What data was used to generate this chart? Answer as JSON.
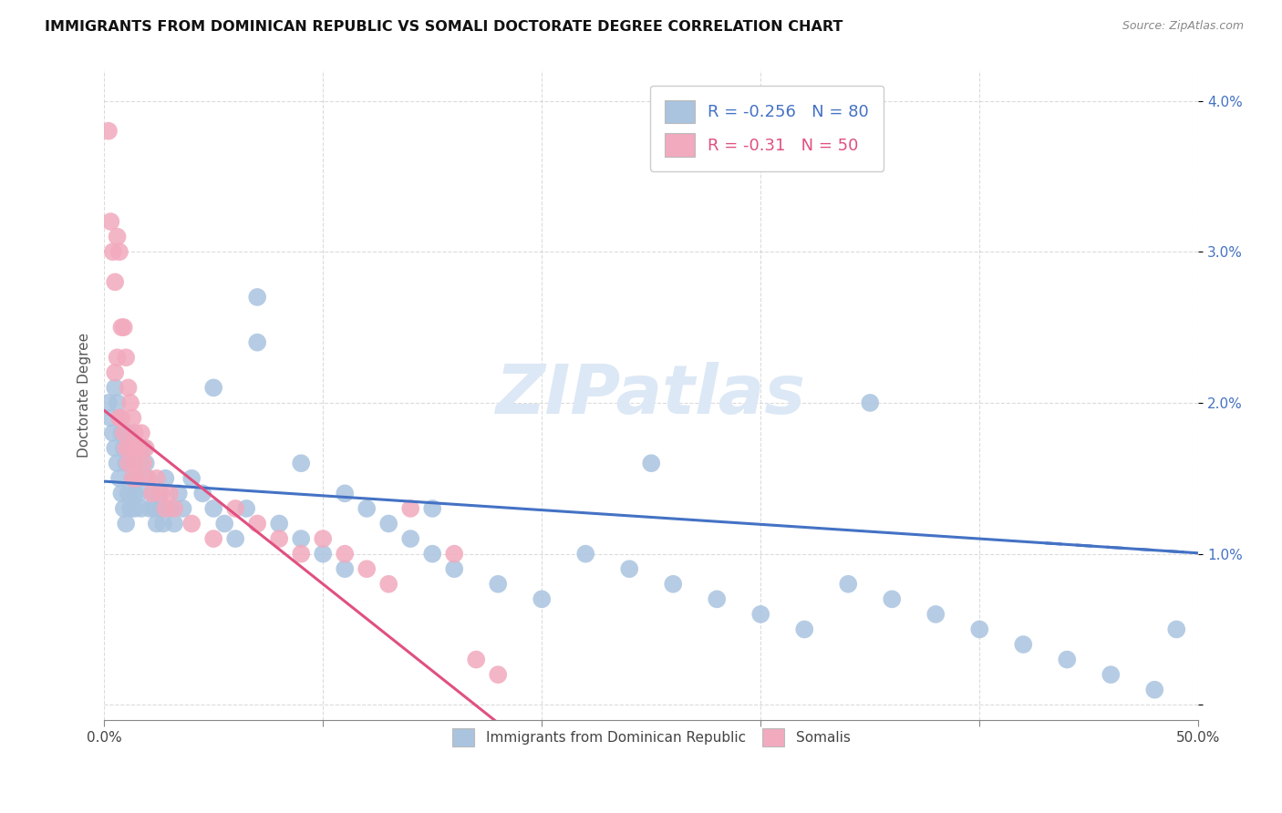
{
  "title": "IMMIGRANTS FROM DOMINICAN REPUBLIC VS SOMALI DOCTORATE DEGREE CORRELATION CHART",
  "source": "Source: ZipAtlas.com",
  "ylabel": "Doctorate Degree",
  "xlim": [
    0,
    0.5
  ],
  "ylim": [
    -0.001,
    0.042
  ],
  "blue_color": "#aac4e0",
  "pink_color": "#f2aabe",
  "blue_line_color": "#4472c4",
  "pink_line_color": "#e05080",
  "legend_blue_label": "Immigrants from Dominican Republic",
  "legend_pink_label": "Somalis",
  "R_blue": -0.256,
  "N_blue": 80,
  "R_pink": -0.31,
  "N_pink": 50,
  "blue_intercept": 0.0148,
  "blue_slope": -0.0095,
  "pink_intercept": 0.0195,
  "pink_slope": -0.115,
  "blue_x": [
    0.002,
    0.003,
    0.004,
    0.005,
    0.005,
    0.006,
    0.006,
    0.007,
    0.007,
    0.008,
    0.008,
    0.009,
    0.009,
    0.01,
    0.01,
    0.011,
    0.011,
    0.012,
    0.012,
    0.013,
    0.014,
    0.014,
    0.015,
    0.016,
    0.017,
    0.018,
    0.019,
    0.02,
    0.021,
    0.022,
    0.023,
    0.024,
    0.025,
    0.026,
    0.027,
    0.028,
    0.03,
    0.032,
    0.034,
    0.036,
    0.04,
    0.045,
    0.05,
    0.055,
    0.06,
    0.065,
    0.07,
    0.08,
    0.09,
    0.1,
    0.11,
    0.12,
    0.13,
    0.14,
    0.15,
    0.16,
    0.18,
    0.2,
    0.22,
    0.24,
    0.26,
    0.28,
    0.3,
    0.32,
    0.34,
    0.36,
    0.38,
    0.4,
    0.42,
    0.44,
    0.46,
    0.48,
    0.49,
    0.35,
    0.25,
    0.15,
    0.05,
    0.07,
    0.09,
    0.11
  ],
  "blue_y": [
    0.02,
    0.019,
    0.018,
    0.021,
    0.017,
    0.02,
    0.016,
    0.019,
    0.015,
    0.018,
    0.014,
    0.017,
    0.013,
    0.016,
    0.012,
    0.018,
    0.014,
    0.016,
    0.013,
    0.015,
    0.014,
    0.013,
    0.015,
    0.014,
    0.013,
    0.017,
    0.016,
    0.015,
    0.013,
    0.014,
    0.013,
    0.012,
    0.014,
    0.013,
    0.012,
    0.015,
    0.013,
    0.012,
    0.014,
    0.013,
    0.015,
    0.014,
    0.013,
    0.012,
    0.011,
    0.013,
    0.027,
    0.012,
    0.011,
    0.01,
    0.009,
    0.013,
    0.012,
    0.011,
    0.01,
    0.009,
    0.008,
    0.007,
    0.01,
    0.009,
    0.008,
    0.007,
    0.006,
    0.005,
    0.008,
    0.007,
    0.006,
    0.005,
    0.004,
    0.003,
    0.002,
    0.001,
    0.005,
    0.02,
    0.016,
    0.013,
    0.021,
    0.024,
    0.016,
    0.014
  ],
  "pink_x": [
    0.002,
    0.003,
    0.004,
    0.005,
    0.005,
    0.006,
    0.006,
    0.007,
    0.007,
    0.008,
    0.008,
    0.009,
    0.009,
    0.01,
    0.01,
    0.011,
    0.011,
    0.012,
    0.012,
    0.013,
    0.013,
    0.014,
    0.014,
    0.015,
    0.015,
    0.016,
    0.017,
    0.018,
    0.019,
    0.02,
    0.022,
    0.024,
    0.026,
    0.028,
    0.03,
    0.032,
    0.04,
    0.05,
    0.06,
    0.07,
    0.08,
    0.09,
    0.1,
    0.11,
    0.12,
    0.13,
    0.14,
    0.16,
    0.17,
    0.18
  ],
  "pink_y": [
    0.038,
    0.032,
    0.03,
    0.028,
    0.022,
    0.031,
    0.023,
    0.03,
    0.019,
    0.025,
    0.019,
    0.025,
    0.018,
    0.023,
    0.017,
    0.021,
    0.016,
    0.02,
    0.017,
    0.019,
    0.015,
    0.018,
    0.016,
    0.017,
    0.015,
    0.017,
    0.018,
    0.016,
    0.017,
    0.015,
    0.014,
    0.015,
    0.014,
    0.013,
    0.014,
    0.013,
    0.012,
    0.011,
    0.013,
    0.012,
    0.011,
    0.01,
    0.011,
    0.01,
    0.009,
    0.008,
    0.013,
    0.01,
    0.003,
    0.002
  ]
}
